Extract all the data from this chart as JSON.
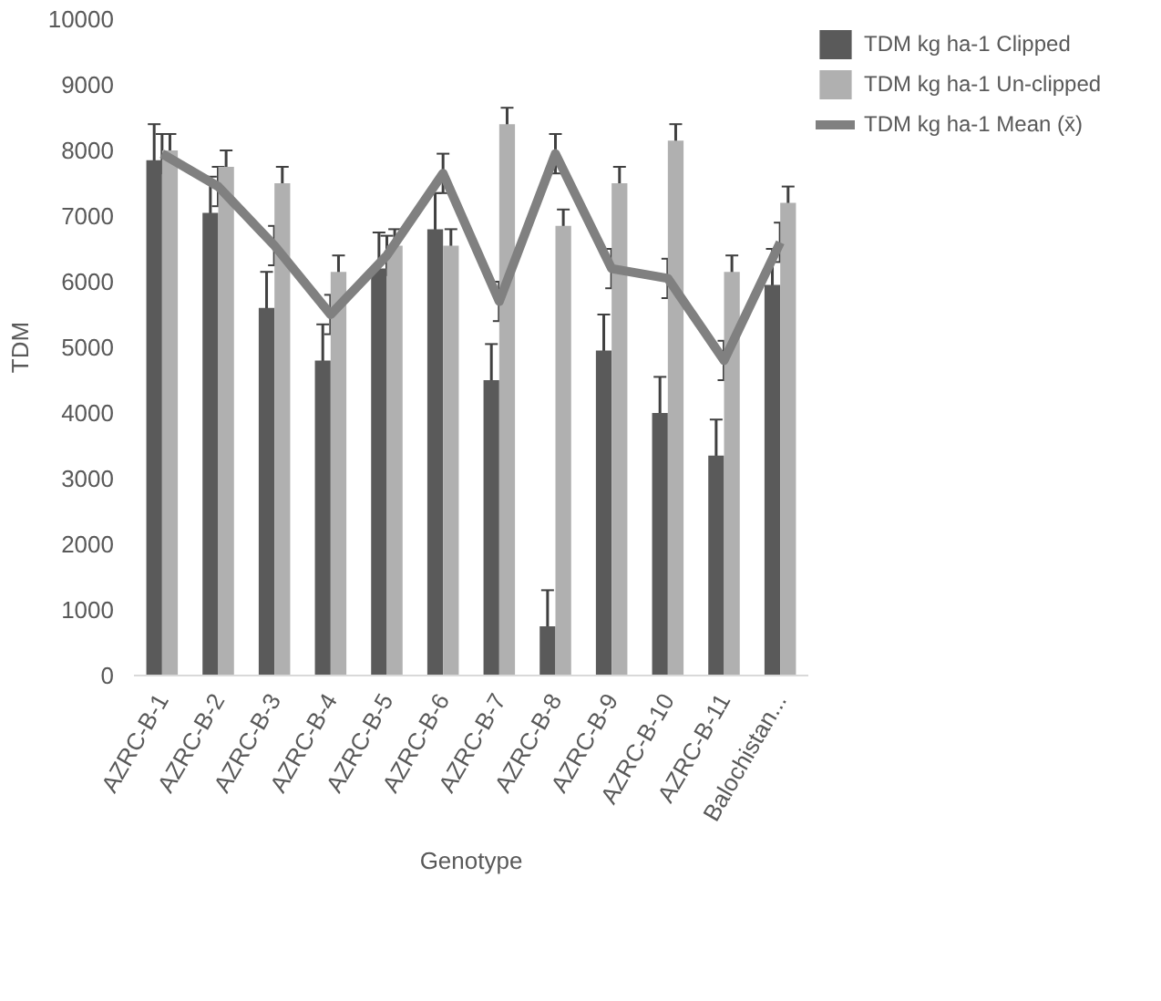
{
  "chart_data": {
    "type": "bar",
    "xlabel": "Genotype",
    "ylabel": "TDM",
    "categories": [
      "AZRC-B-1",
      "AZRC-B-2",
      "AZRC-B-3",
      "AZRC-B-4",
      "AZRC-B-5",
      "AZRC-B-6",
      "AZRC-B-7",
      "AZRC-B-8",
      "AZRC-B-9",
      "AZRC-B-10",
      "AZRC-B-11",
      "Balochistan..."
    ],
    "series": [
      {
        "name": "TDM kg ha-1 Clipped",
        "color": "#5a5a5a",
        "values": [
          7850,
          7050,
          5600,
          4800,
          6200,
          6800,
          4500,
          750,
          4950,
          4000,
          3350,
          5950
        ],
        "errors": [
          550,
          550,
          550,
          550,
          550,
          550,
          550,
          550,
          550,
          550,
          550,
          550
        ]
      },
      {
        "name": "TDM kg ha-1 Un-clipped",
        "color": "#b0b0b0",
        "values": [
          8000,
          7750,
          7500,
          6150,
          6550,
          6550,
          8400,
          6850,
          7500,
          8150,
          6150,
          7200
        ],
        "errors": [
          250,
          250,
          250,
          250,
          250,
          250,
          250,
          250,
          250,
          250,
          250,
          250
        ]
      },
      {
        "name": "TDM kg ha-1 Mean (x̄)",
        "type": "line",
        "color": "#808080",
        "values": [
          7950,
          7450,
          6550,
          5500,
          6400,
          7650,
          5700,
          7950,
          6200,
          6050,
          4800,
          6600
        ],
        "errors": [
          300,
          300,
          300,
          300,
          300,
          300,
          300,
          300,
          300,
          300,
          300,
          300
        ]
      }
    ],
    "ylim": [
      0,
      10000
    ],
    "yticks": [
      0,
      1000,
      2000,
      3000,
      4000,
      5000,
      6000,
      7000,
      8000,
      9000,
      10000
    ],
    "grid": false,
    "legend": "right",
    "marker": "none",
    "line_style": "solid"
  }
}
